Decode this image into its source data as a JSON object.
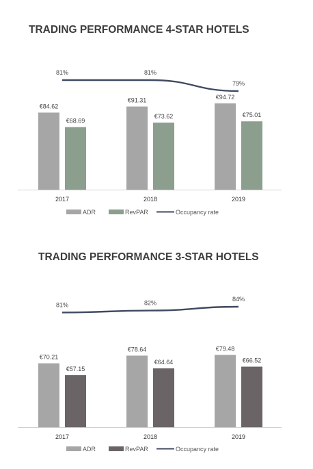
{
  "colors": {
    "adr": "#a6a6a6",
    "revpar_4star": "#8c9e8e",
    "revpar_3star": "#6b6466",
    "occupancy_line": "#3f4a61",
    "axis": "#d0d0d0"
  },
  "chart_data": [
    {
      "type": "bar",
      "title": "TRADING PERFORMANCE 4-STAR HOTELS",
      "categories": [
        "2017",
        "2018",
        "2019"
      ],
      "series": [
        {
          "name": "ADR",
          "values": [
            84.62,
            91.31,
            94.72
          ],
          "labels": [
            "€84.62",
            "€91.31",
            "€94.72"
          ]
        },
        {
          "name": "RevPAR",
          "values": [
            68.69,
            73.62,
            75.01
          ],
          "labels": [
            "€68.69",
            "€73.62",
            "€75.01"
          ]
        }
      ],
      "line": {
        "name": "Occupancy rate",
        "values": [
          81,
          81,
          79
        ],
        "labels": [
          "81%",
          "81%",
          "79%"
        ]
      },
      "ylim": [
        0,
        100
      ],
      "legend": "bottom",
      "grid": false
    },
    {
      "type": "bar",
      "title": "TRADING PERFORMANCE 3-STAR HOTELS",
      "categories": [
        "2017",
        "2018",
        "2019"
      ],
      "series": [
        {
          "name": "ADR",
          "values": [
            70.21,
            78.64,
            79.48
          ],
          "labels": [
            "€70.21",
            "€78.64",
            "€79.48"
          ]
        },
        {
          "name": "RevPAR",
          "values": [
            57.15,
            64.64,
            66.52
          ],
          "labels": [
            "€57.15",
            "€64.64",
            "€66.52"
          ]
        }
      ],
      "line": {
        "name": "Occupancy rate",
        "values": [
          81,
          82,
          84
        ],
        "labels": [
          "81%",
          "82%",
          "84%"
        ]
      },
      "ylim": [
        0,
        100
      ],
      "legend": "bottom",
      "grid": false
    }
  ]
}
